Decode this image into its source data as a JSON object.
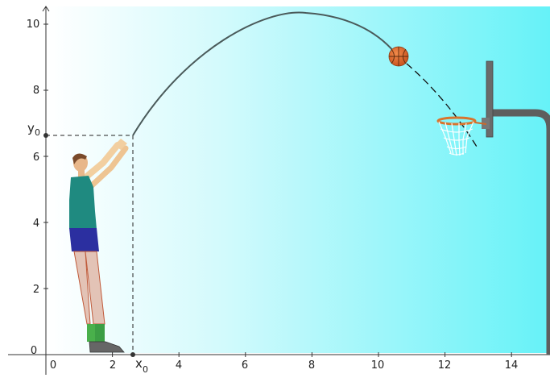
{
  "axes": {
    "x_ticks": [
      "0",
      "2",
      "4",
      "6",
      "8",
      "10",
      "12",
      "14"
    ],
    "y_ticks": [
      "0",
      "2",
      "4",
      "6",
      "8",
      "10"
    ],
    "x0_label": "x",
    "x0_sub": "0",
    "y0_label": "y",
    "y0_sub": "0"
  },
  "colors": {
    "sky_left": "#ffffff",
    "sky_right": "#66f2f8",
    "trajectory": "#4a5a5a",
    "ball": "#e2692c",
    "shirt": "#1f8a80",
    "shorts": "#2b2fa0",
    "backboard_pole": "#555555"
  },
  "illustration": {
    "player": "basketball-player-shooting",
    "ball": "basketball",
    "hoop": "basketball-hoop-with-net",
    "backboard": "backboard-with-pole"
  }
}
